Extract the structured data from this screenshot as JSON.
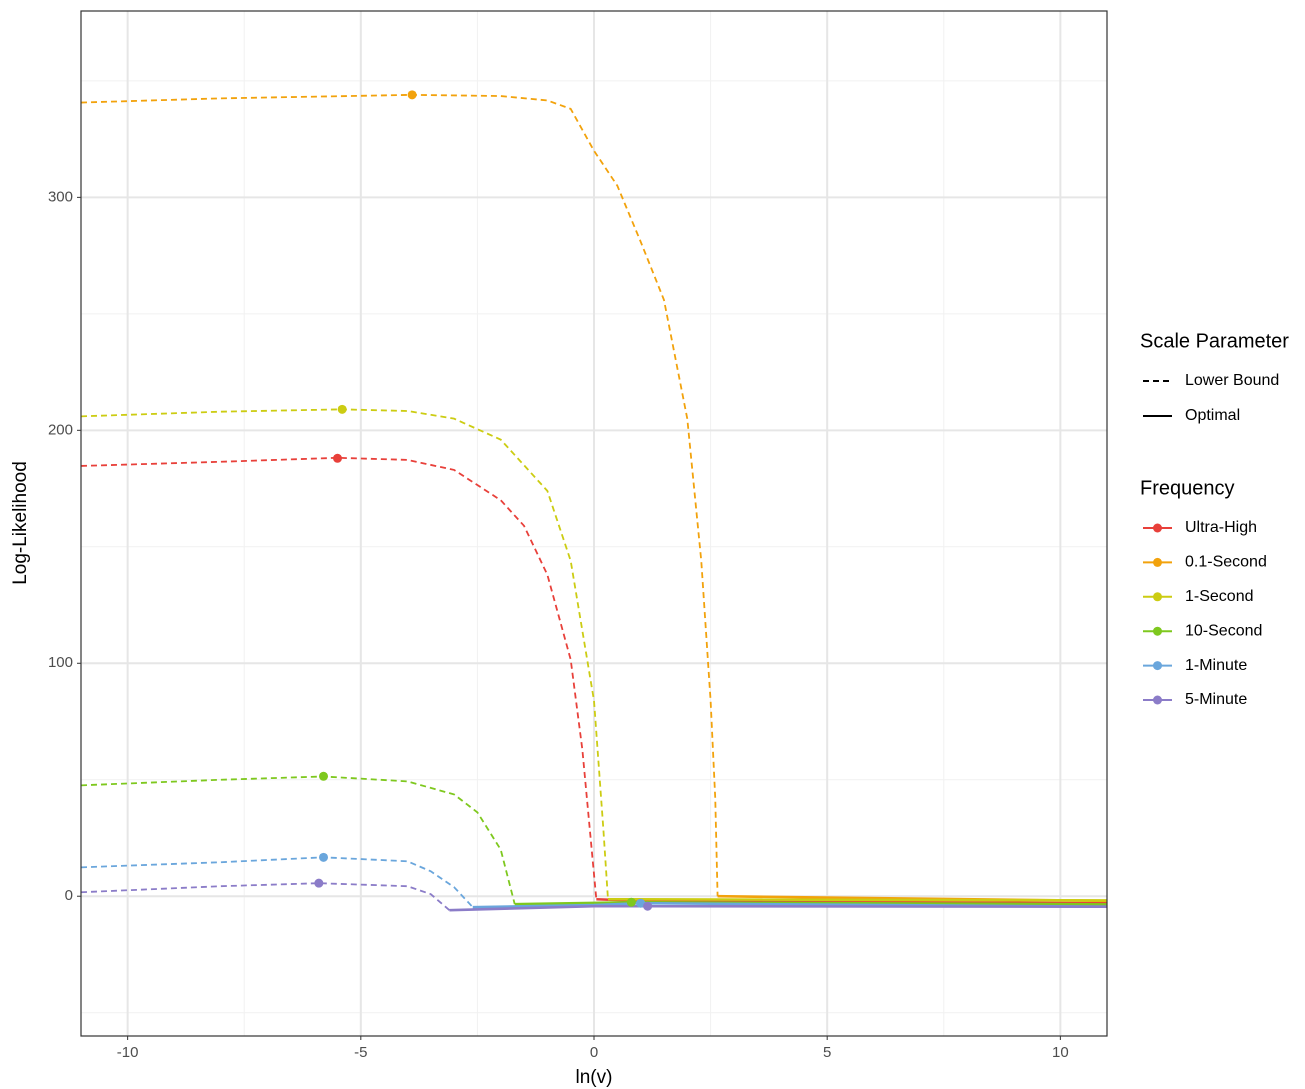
{
  "chart_data": {
    "type": "line",
    "x_label": "ln(v)",
    "y_label": "Log-Likelihood",
    "xlim": [
      -11,
      11
    ],
    "ylim": [
      -60,
      380
    ],
    "xticks": [
      -10,
      -5,
      0,
      5,
      10
    ],
    "yticks": [
      0,
      100,
      200,
      300
    ],
    "xminor": [
      -7.5,
      -2.5,
      2.5,
      7.5
    ],
    "yminor": [
      -50,
      50,
      150,
      250,
      350
    ],
    "grid": true,
    "linetype_legend": {
      "title": "Scale Parameter",
      "entries": [
        "Lower Bound",
        "Optimal"
      ]
    },
    "color_legend_title": "Frequency",
    "series": [
      {
        "name": "Ultra-High",
        "color": "#e8403a",
        "lower_bound": {
          "x": [
            -11,
            -8,
            -5.5,
            -4,
            -3,
            -2,
            -1.5,
            -1,
            -0.5,
            -0.25,
            0.05
          ],
          "y": [
            184.7,
            186.5,
            188.2,
            187.3,
            183,
            170,
            159,
            138,
            101.6,
            63,
            -1.3
          ]
        },
        "optimal": {
          "x": [
            0.05,
            1,
            11
          ],
          "y": [
            -1.3,
            -2,
            -3
          ]
        },
        "points": [
          {
            "x": -5.5,
            "y": 188
          }
        ]
      },
      {
        "name": "0.1-Second",
        "color": "#f2a20c",
        "lower_bound": {
          "x": [
            -11,
            -8,
            -3.9,
            -2,
            -1,
            -0.5,
            0,
            0.5,
            1,
            1.5,
            2,
            2.3,
            2.5,
            2.6,
            2.65
          ],
          "y": [
            340.7,
            342.5,
            344,
            343.5,
            341.6,
            338,
            320,
            305,
            281,
            256,
            205,
            144,
            84,
            42,
            0
          ]
        },
        "optimal": {
          "x": [
            2.65,
            11
          ],
          "y": [
            0,
            -2
          ]
        },
        "points": [
          {
            "x": -3.9,
            "y": 344
          }
        ]
      },
      {
        "name": "1-Second",
        "color": "#cccc12",
        "lower_bound": {
          "x": [
            -11,
            -8,
            -5.4,
            -4,
            -3,
            -2,
            -1,
            -0.5,
            0,
            0.2,
            0.3
          ],
          "y": [
            206,
            208,
            209,
            208.3,
            205,
            196,
            174,
            144,
            84,
            29,
            -1.3
          ]
        },
        "optimal": {
          "x": [
            0.3,
            11
          ],
          "y": [
            -1.3,
            -1.8
          ]
        },
        "points": [
          {
            "x": -5.4,
            "y": 209
          }
        ]
      },
      {
        "name": "10-Second",
        "color": "#7ec81e",
        "lower_bound": {
          "x": [
            -11,
            -8,
            -5.8,
            -4,
            -3,
            -2.5,
            -2,
            -1.7
          ],
          "y": [
            47.6,
            50,
            51.4,
            49.3,
            43.7,
            36,
            20,
            -3.4
          ]
        },
        "optimal": {
          "x": [
            -1.7,
            0.8,
            11
          ],
          "y": [
            -3.4,
            -2.6,
            -3.5
          ]
        },
        "points": [
          {
            "x": -5.8,
            "y": 51.5
          },
          {
            "x": 0.8,
            "y": -2.6
          }
        ]
      },
      {
        "name": "1-Minute",
        "color": "#6aa6dc",
        "lower_bound": {
          "x": [
            -11,
            -8,
            -5.8,
            -4,
            -3.5,
            -3,
            -2.6
          ],
          "y": [
            12.4,
            14.6,
            16.7,
            15,
            10.7,
            3.9,
            -4.7
          ]
        },
        "optimal": {
          "x": [
            -2.6,
            0,
            1,
            11
          ],
          "y": [
            -4.7,
            -3.8,
            -3,
            -4.5
          ]
        },
        "points": [
          {
            "x": -5.8,
            "y": 16.7
          },
          {
            "x": 1,
            "y": -3
          }
        ]
      },
      {
        "name": "5-Minute",
        "color": "#8b7cc8",
        "lower_bound": {
          "x": [
            -11,
            -8,
            -5.9,
            -4,
            -3.5,
            -3.1
          ],
          "y": [
            1.7,
            4.3,
            5.6,
            4.3,
            0.9,
            -6
          ]
        },
        "optimal": {
          "x": [
            -3.1,
            0,
            1.15,
            11
          ],
          "y": [
            -6,
            -4.3,
            -4.3,
            -4.5
          ]
        },
        "points": [
          {
            "x": -5.9,
            "y": 5.6
          },
          {
            "x": 1.15,
            "y": -4.3
          }
        ]
      }
    ]
  }
}
